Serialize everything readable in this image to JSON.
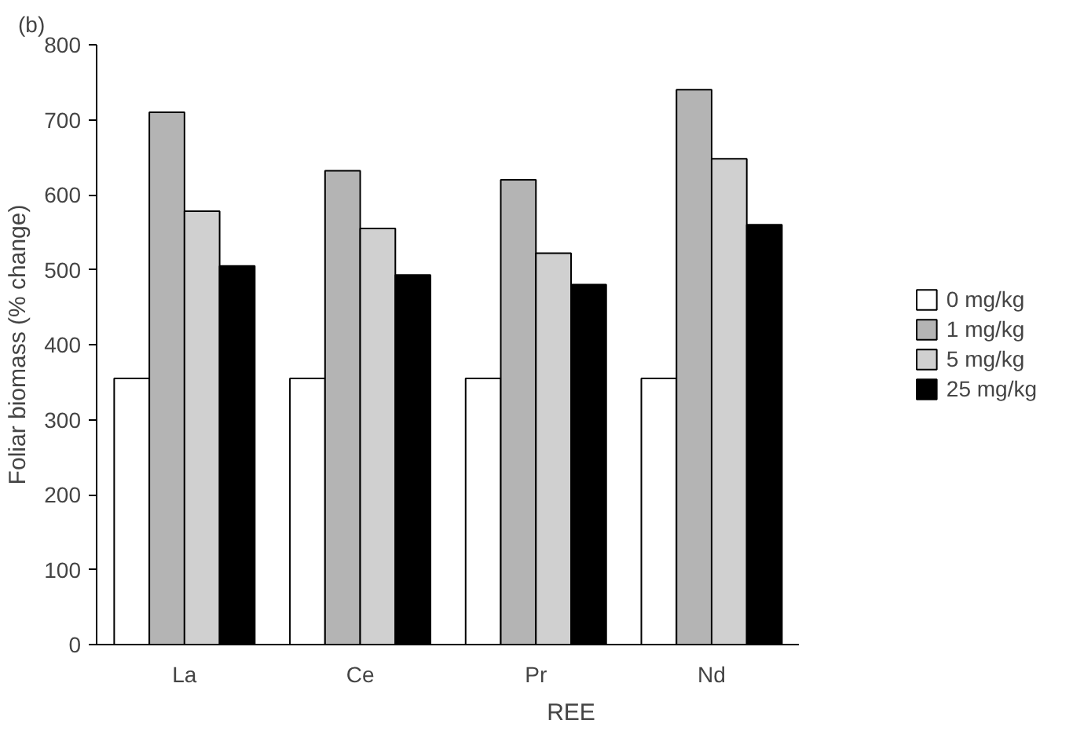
{
  "chart_data": {
    "type": "bar",
    "xlabel": "REE",
    "ylabel": "Foliar biomass (% change)",
    "annotations": [
      "(b)"
    ],
    "categories": [
      "La",
      "Ce",
      "Pr",
      "Nd"
    ],
    "series": [
      {
        "name": "0 mg/kg",
        "color": "#ffffff",
        "values": [
          355,
          355,
          355,
          355
        ]
      },
      {
        "name": "1 mg/kg",
        "color": "#b4b4b4",
        "values": [
          710,
          632,
          620,
          740
        ]
      },
      {
        "name": "5 mg/kg",
        "color": "#d0d0d0",
        "values": [
          578,
          555,
          522,
          648
        ]
      },
      {
        "name": "25 mg/kg",
        "color": "#000000",
        "values": [
          505,
          493,
          480,
          560
        ]
      }
    ],
    "ylim": [
      0,
      800
    ],
    "yticks": [
      0,
      100,
      200,
      300,
      400,
      500,
      600,
      700,
      800
    ],
    "grid": false,
    "legend": "right"
  }
}
